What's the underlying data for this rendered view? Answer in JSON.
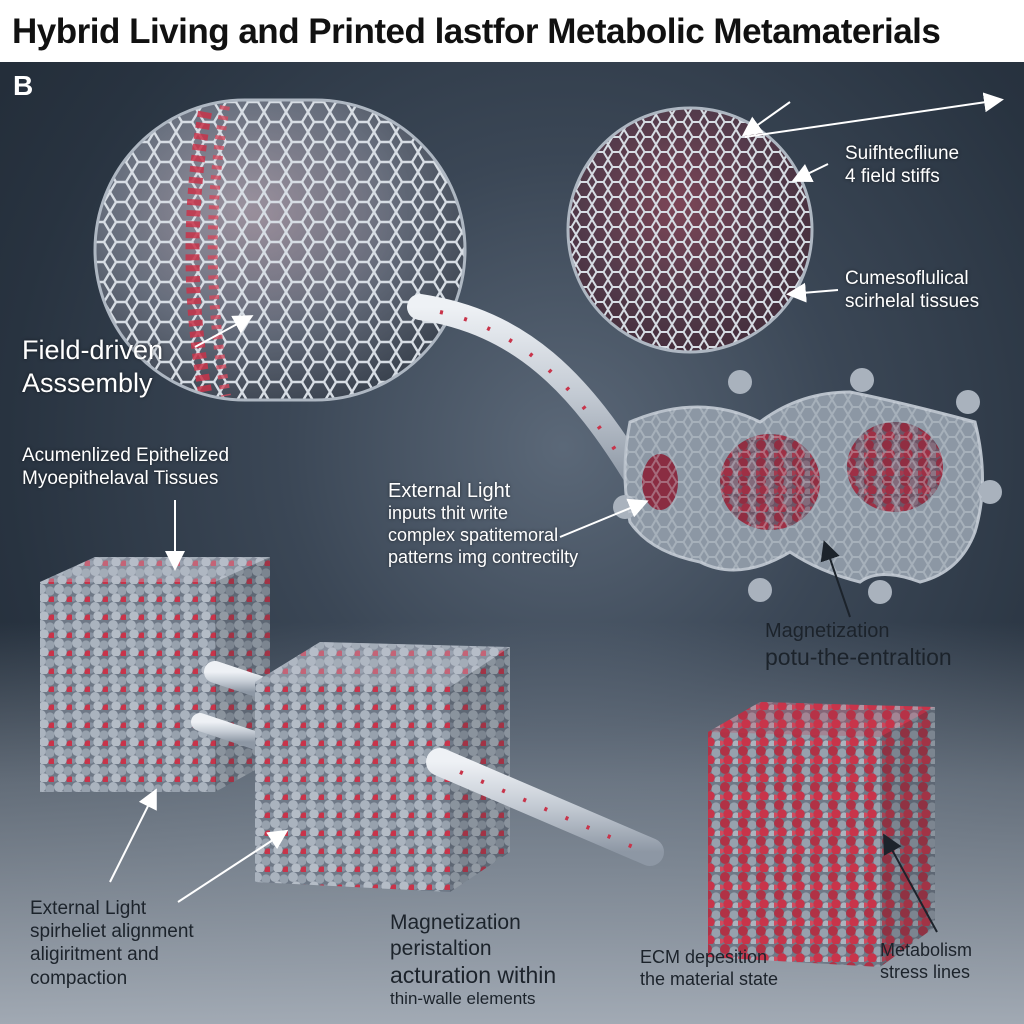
{
  "title": "Hybrid Living and Printed lastfor Metabolic Metamaterials",
  "panel_letter": "B",
  "labels": {
    "field_driven": [
      "Field-driven",
      "Asssembly"
    ],
    "sphere_top": [
      "Suifhtecfliune",
      "4 field stiffs"
    ],
    "sphere_bottom": [
      "Cumesoflulical",
      "scirhelal tissues"
    ],
    "acumenlized": [
      "Acumenlized Epithelized",
      "Myoepithelaval Tissues"
    ],
    "external_light_mid": [
      "External Light",
      "inputs thit write",
      "complex spatitemoral",
      "patterns img contrectilty"
    ],
    "magnetization_right": [
      "Magnetization",
      "potu-the-entraltion"
    ],
    "external_light_bottom": [
      "External Light",
      "spirheliet alignment",
      "aligiritment and",
      "compaction"
    ],
    "magnetization_bottom": [
      "Magnetization",
      "peristaltion",
      "acturation within",
      "thin-walle elements"
    ],
    "ecm": [
      "ECM depesition",
      "the material state"
    ],
    "metabolism": [
      "Metabolism",
      "stress lines"
    ]
  },
  "colors": {
    "accent_red": "#c8344a",
    "material_gray": "#9aa4b0",
    "background_dark": "#283340",
    "label_white": "#ffffff",
    "label_dark": "#1c232b"
  }
}
